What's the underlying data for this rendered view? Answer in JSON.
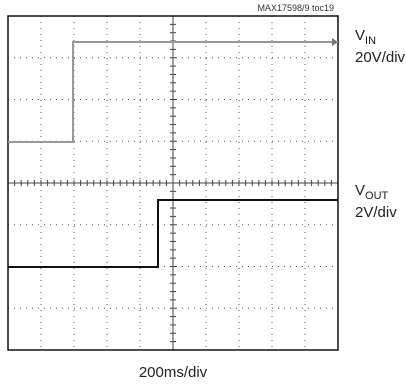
{
  "note": "MAX17598/9 toc19",
  "channels": [
    {
      "name": "V",
      "sub": "IN",
      "scale": "20V/div"
    },
    {
      "name": "V",
      "sub": "OUT",
      "scale": "2V/div"
    }
  ],
  "timebase": "200ms/div"
}
